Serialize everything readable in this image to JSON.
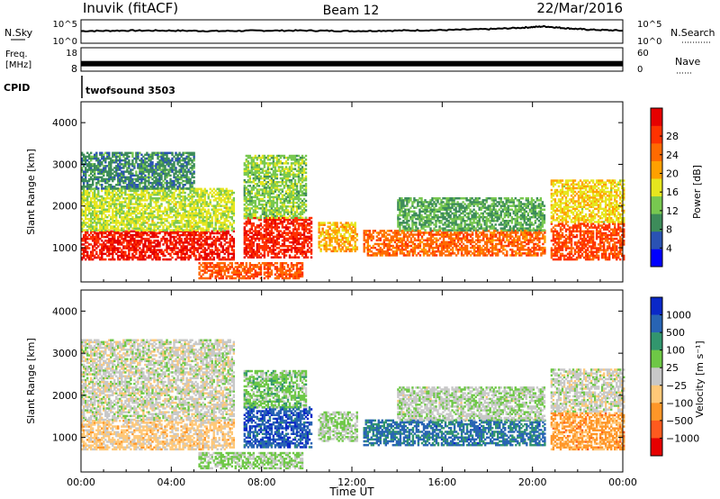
{
  "header": {
    "station": "Inuvik (fitACF)",
    "beam": "Beam 12",
    "date": "22/Mar/2016"
  },
  "summary": {
    "nsky_label": "N.Sky",
    "nsky_ticks": [
      "10^5",
      "10^0"
    ],
    "nsearch_label": "N.Search",
    "nsearch_ticks": [
      "10^5",
      "10^0"
    ],
    "freq_label_1": "Freq.",
    "freq_label_2": "[MHz]",
    "freq_ticks": [
      "18",
      "8"
    ],
    "nave_label": "Nave",
    "nave_ticks": [
      "60",
      "0"
    ],
    "cpid_label": "CPID",
    "cpid_value": "twofsound 3503"
  },
  "colors": {
    "power_scale": [
      "#0000ff",
      "#2a52b4",
      "#3d8c5a",
      "#78c850",
      "#e6e61e",
      "#ffa000",
      "#ff6a00",
      "#ff3200",
      "#e60000"
    ],
    "velocity_scale": [
      "#0a28c8",
      "#2864b4",
      "#32966e",
      "#6ec846",
      "#c8c8c8",
      "#ffc878",
      "#ff9628",
      "#ff5a1e",
      "#e60000"
    ],
    "sky_line": "#000000"
  },
  "chart_data": [
    {
      "type": "heatmap",
      "title": "",
      "xlabel": "Time UT",
      "ylabel": "Slant Range [km]",
      "x_ticks": [
        "00:00",
        "04:00",
        "08:00",
        "12:00",
        "16:00",
        "20:00",
        "00:00"
      ],
      "xlim_hours": [
        0,
        24
      ],
      "y_ticks": [
        "1000",
        "2000",
        "3000",
        "4000"
      ],
      "ylim": [
        180,
        4500
      ],
      "colorbar": {
        "label": "Power [dB]",
        "ticks": [
          "4",
          "8",
          "12",
          "16",
          "20",
          "24",
          "28"
        ],
        "range": [
          0,
          30
        ]
      },
      "echo_regions": [
        {
          "t0": 0.0,
          "t1": 6.8,
          "r0": 700,
          "r1": 1400,
          "value": 27
        },
        {
          "t0": 0.0,
          "t1": 6.8,
          "r0": 1400,
          "r1": 2400,
          "value": 14
        },
        {
          "t0": 0.0,
          "t1": 5.0,
          "r0": 2400,
          "r1": 3300,
          "value": 8
        },
        {
          "t0": 5.2,
          "t1": 9.8,
          "r0": 250,
          "r1": 650,
          "value": 23
        },
        {
          "t0": 7.2,
          "t1": 10.2,
          "r0": 750,
          "r1": 1700,
          "value": 26
        },
        {
          "t0": 7.2,
          "t1": 10.0,
          "r0": 1700,
          "r1": 3200,
          "value": 12
        },
        {
          "t0": 10.5,
          "t1": 12.2,
          "r0": 900,
          "r1": 1600,
          "value": 18
        },
        {
          "t0": 12.5,
          "t1": 20.5,
          "r0": 800,
          "r1": 1400,
          "value": 22
        },
        {
          "t0": 14.0,
          "t1": 20.5,
          "r0": 1400,
          "r1": 2200,
          "value": 10
        },
        {
          "t0": 20.8,
          "t1": 24.0,
          "r0": 700,
          "r1": 1600,
          "value": 24
        },
        {
          "t0": 20.8,
          "t1": 24.0,
          "r0": 1600,
          "r1": 2600,
          "value": 16
        }
      ]
    },
    {
      "type": "heatmap",
      "title": "",
      "xlabel": "Time UT",
      "ylabel": "Slant Range [km]",
      "x_ticks": [
        "00:00",
        "04:00",
        "08:00",
        "12:00",
        "16:00",
        "20:00",
        "00:00"
      ],
      "xlim_hours": [
        0,
        24
      ],
      "y_ticks": [
        "1000",
        "2000",
        "3000",
        "4000"
      ],
      "ylim": [
        180,
        4500
      ],
      "colorbar": {
        "label": "Velocity [m s⁻¹]",
        "ticks": [
          "1000",
          "500",
          "100",
          "25",
          "−25",
          "−100",
          "−500",
          "−1000"
        ],
        "range": [
          -1000,
          1000
        ]
      },
      "echo_regions": [
        {
          "t0": 0.0,
          "t1": 6.8,
          "r0": 700,
          "r1": 1400,
          "value": -200
        },
        {
          "t0": 0.0,
          "t1": 6.8,
          "r0": 1400,
          "r1": 3300,
          "value": 0
        },
        {
          "t0": 5.2,
          "t1": 9.8,
          "r0": 250,
          "r1": 650,
          "value": 150
        },
        {
          "t0": 7.2,
          "t1": 10.2,
          "r0": 750,
          "r1": 1700,
          "value": 700
        },
        {
          "t0": 7.2,
          "t1": 10.0,
          "r0": 1700,
          "r1": 2600,
          "value": 200
        },
        {
          "t0": 10.5,
          "t1": 12.2,
          "r0": 900,
          "r1": 1600,
          "value": 120
        },
        {
          "t0": 12.5,
          "t1": 20.5,
          "r0": 800,
          "r1": 1400,
          "value": 600
        },
        {
          "t0": 14.0,
          "t1": 20.5,
          "r0": 1400,
          "r1": 2200,
          "value": 60
        },
        {
          "t0": 20.8,
          "t1": 24.0,
          "r0": 700,
          "r1": 1600,
          "value": -400
        },
        {
          "t0": 20.8,
          "t1": 24.0,
          "r0": 1600,
          "r1": 2600,
          "value": 0
        }
      ]
    }
  ],
  "nsky_series": {
    "hours": [
      0,
      2,
      4,
      6,
      8,
      10,
      12,
      14,
      16,
      18,
      19.5,
      20.5,
      21.5,
      22.5,
      24
    ],
    "log_values": [
      2.6,
      2.7,
      2.7,
      2.6,
      2.7,
      2.7,
      2.6,
      2.7,
      2.8,
      3.0,
      3.3,
      3.6,
      3.2,
      2.9,
      2.7
    ]
  },
  "freq_series": {
    "hours": [
      0,
      24
    ],
    "mhz": [
      11.2,
      11.2
    ]
  }
}
